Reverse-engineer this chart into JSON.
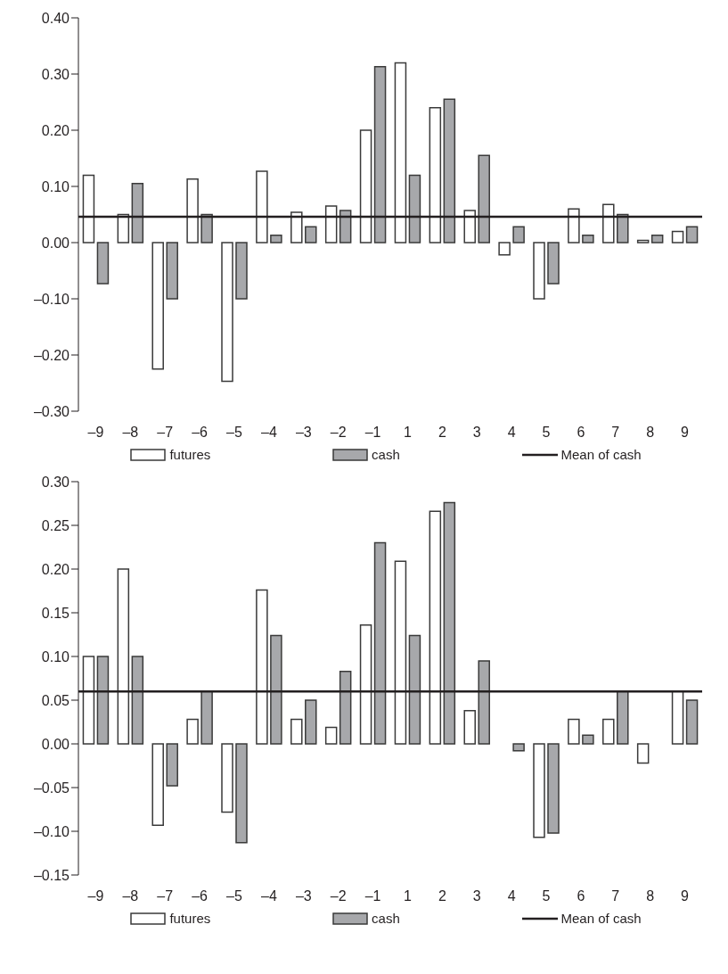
{
  "chart_data": [
    {
      "type": "bar",
      "categories": [
        "–9",
        "–8",
        "–7",
        "–6",
        "–5",
        "–4",
        "–3",
        "–2",
        "–1",
        "1",
        "2",
        "3",
        "4",
        "5",
        "6",
        "7",
        "8",
        "9"
      ],
      "series": [
        {
          "name": "futures",
          "color": "#ffffff",
          "values": [
            0.12,
            0.05,
            -0.225,
            0.113,
            -0.247,
            0.127,
            0.054,
            0.065,
            0.2,
            0.32,
            0.24,
            0.057,
            -0.022,
            -0.1,
            0.06,
            0.068,
            0.004,
            0.02
          ]
        },
        {
          "name": "cash",
          "color": "#a7a8ab",
          "values": [
            -0.073,
            0.105,
            -0.1,
            0.05,
            -0.1,
            0.013,
            0.028,
            0.057,
            0.313,
            0.12,
            0.255,
            0.155,
            0.028,
            -0.073,
            0.013,
            0.05,
            0.013,
            0.028
          ]
        }
      ],
      "ylim": [
        -0.3,
        0.4
      ],
      "yticks": [
        {
          "value": -0.3,
          "label": "–0.30"
        },
        {
          "value": -0.2,
          "label": "–0.20"
        },
        {
          "value": -0.1,
          "label": "–0.10"
        },
        {
          "value": 0,
          "label": "0.00"
        },
        {
          "value": 0.1,
          "label": "0.10"
        },
        {
          "value": 0.2,
          "label": "0.20"
        },
        {
          "value": 0.3,
          "label": "0.30"
        },
        {
          "value": 0.4,
          "label": "0.40"
        }
      ],
      "ref_lines": [
        {
          "axis": "y",
          "value": 0.046,
          "label": "Mean of cash",
          "color": "#231f20"
        }
      ],
      "legend": "bottom",
      "grid": false
    },
    {
      "type": "bar",
      "categories": [
        "–9",
        "–8",
        "–7",
        "–6",
        "–5",
        "–4",
        "–3",
        "–2",
        "–1",
        "1",
        "2",
        "3",
        "4",
        "5",
        "6",
        "7",
        "8",
        "9"
      ],
      "series": [
        {
          "name": "futures",
          "color": "#ffffff",
          "values": [
            0.1,
            0.2,
            -0.093,
            0.028,
            -0.078,
            0.176,
            0.028,
            0.019,
            0.136,
            0.209,
            0.266,
            0.038,
            0,
            -0.107,
            0.028,
            0.028,
            -0.022,
            0.06
          ]
        },
        {
          "name": "cash",
          "color": "#a7a8ab",
          "values": [
            0.1,
            0.1,
            -0.048,
            0.06,
            -0.113,
            0.124,
            0.05,
            0.083,
            0.23,
            0.124,
            0.276,
            0.095,
            -0.008,
            -0.102,
            0.01,
            0.06,
            0,
            0.05
          ]
        }
      ],
      "ylim": [
        -0.15,
        0.3
      ],
      "yticks": [
        {
          "value": -0.15,
          "label": "–0.15"
        },
        {
          "value": -0.1,
          "label": "–0.10"
        },
        {
          "value": -0.05,
          "label": "–0.05"
        },
        {
          "value": 0,
          "label": "0.00"
        },
        {
          "value": 0.05,
          "label": "0.05"
        },
        {
          "value": 0.1,
          "label": "0.10"
        },
        {
          "value": 0.15,
          "label": "0.15"
        },
        {
          "value": 0.2,
          "label": "0.20"
        },
        {
          "value": 0.25,
          "label": "0.25"
        },
        {
          "value": 0.3,
          "label": "0.30"
        }
      ],
      "ref_lines": [
        {
          "axis": "y",
          "value": 0.06,
          "label": "Mean of cash",
          "color": "#231f20"
        }
      ],
      "legend": "bottom",
      "grid": false
    }
  ]
}
